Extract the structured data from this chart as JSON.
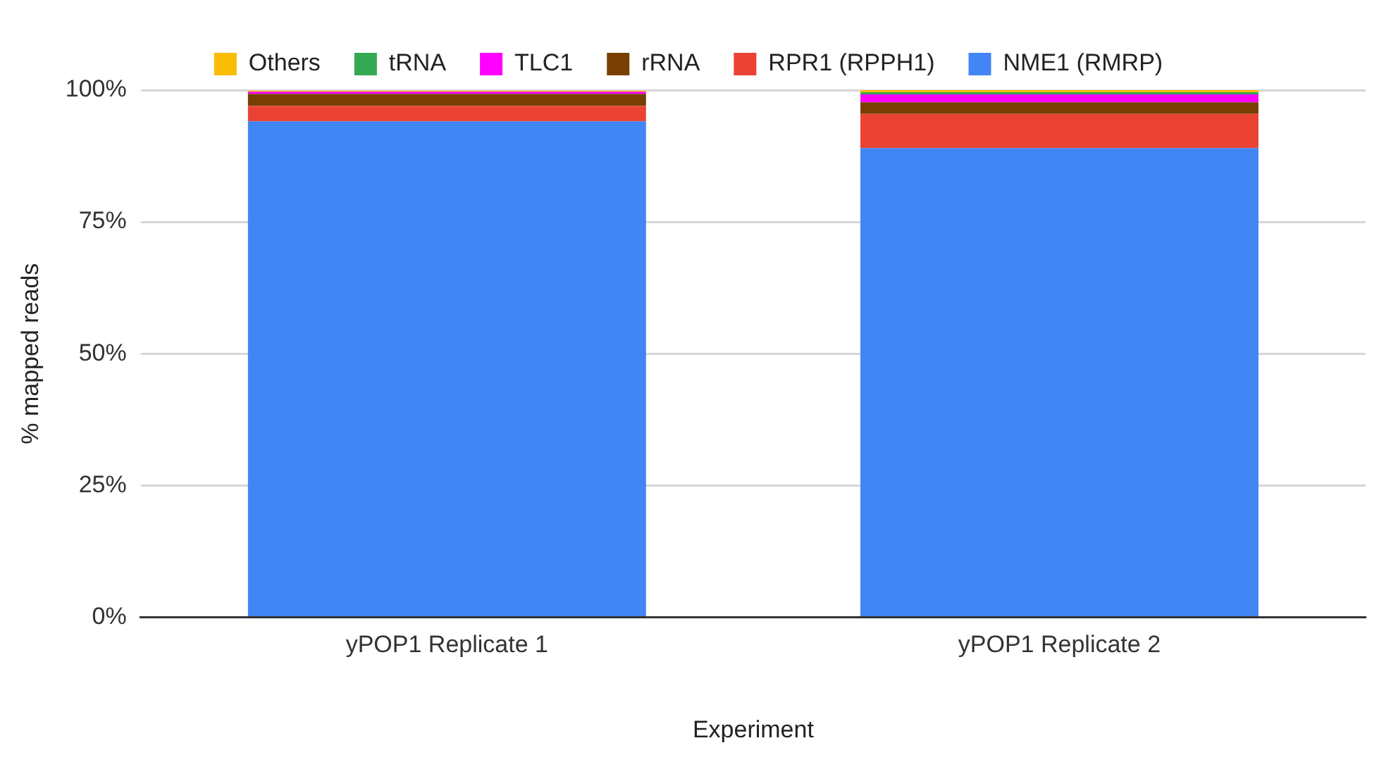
{
  "chart_data": {
    "type": "bar",
    "stacked": true,
    "xlabel": "Experiment",
    "ylabel": "% mapped reads",
    "categories": [
      "yPOP1 Replicate 1",
      "yPOP1 Replicate 2"
    ],
    "series": [
      {
        "name": "NME1 (RMRP)",
        "color": "#4285f4",
        "values": [
          94.1,
          89.0
        ]
      },
      {
        "name": "RPR1 (RPPH1)",
        "color": "#ea4335",
        "values": [
          2.9,
          6.5
        ]
      },
      {
        "name": "rRNA",
        "color": "#783f04",
        "values": [
          2.3,
          2.2
        ]
      },
      {
        "name": "TLC1",
        "color": "#ff00ff",
        "values": [
          0.4,
          1.5
        ]
      },
      {
        "name": "tRNA",
        "color": "#34a853",
        "values": [
          null,
          0.4
        ]
      },
      {
        "name": "Others",
        "color": "#fbbc04",
        "values": [
          0.2,
          0.4
        ]
      }
    ],
    "ylim": [
      0,
      100
    ],
    "yticks": [
      {
        "value": 0,
        "label": "0%"
      },
      {
        "value": 25,
        "label": "25%"
      },
      {
        "value": 50,
        "label": "50%"
      },
      {
        "value": 75,
        "label": "75%"
      },
      {
        "value": 100,
        "label": "100%"
      }
    ],
    "grid": "y",
    "legend": "top"
  }
}
